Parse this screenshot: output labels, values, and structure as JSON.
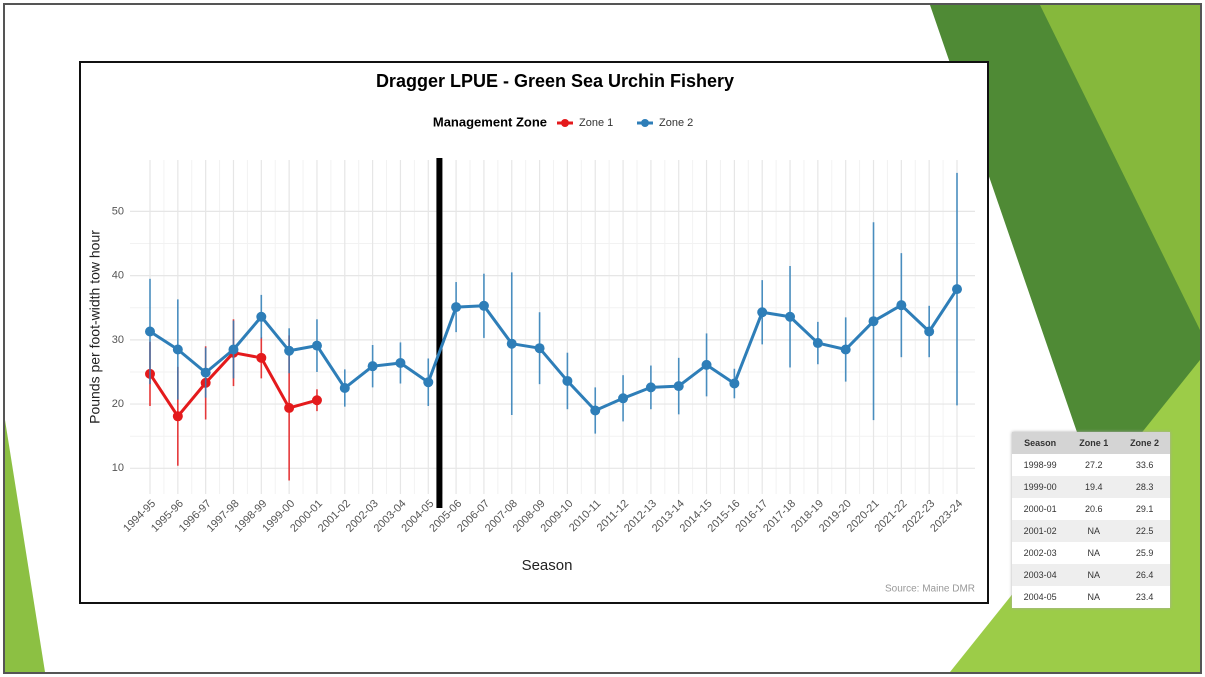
{
  "chart_data": {
    "type": "line",
    "title": "Dragger LPUE - Green Sea Urchin Fishery",
    "x_label": "Season",
    "y_label": "Pounds per foot-width tow hour",
    "source": "Source: Maine DMR",
    "legend_title": "Management Zone",
    "legend_position": "top",
    "grid": true,
    "categories": [
      "1994-95",
      "1995-96",
      "1996-97",
      "1997-98",
      "1998-99",
      "1999-00",
      "2000-01",
      "2001-02",
      "2002-03",
      "2003-04",
      "2004-05",
      "2005-06",
      "2006-07",
      "2007-08",
      "2008-09",
      "2009-10",
      "2010-11",
      "2011-12",
      "2012-13",
      "2013-14",
      "2014-15",
      "2015-16",
      "2016-17",
      "2017-18",
      "2018-19",
      "2019-20",
      "2020-21",
      "2021-22",
      "2022-23",
      "2023-24"
    ],
    "series": [
      {
        "name": "Zone 1",
        "color": "#e41a1c",
        "values": [
          24.7,
          18.1,
          23.3,
          28.0,
          27.2,
          19.4,
          20.6,
          null,
          null,
          null,
          null,
          null,
          null,
          null,
          null,
          null,
          null,
          null,
          null,
          null,
          null,
          null,
          null,
          null,
          null,
          null,
          null,
          null,
          null,
          null
        ],
        "errors": [
          5.0,
          7.7,
          5.7,
          5.2,
          3.2,
          11.3,
          1.7,
          null,
          null,
          null,
          null,
          null,
          null,
          null,
          null,
          null,
          null,
          null,
          null,
          null,
          null,
          null,
          null,
          null,
          null,
          null,
          null,
          null,
          null,
          null
        ]
      },
      {
        "name": "Zone 2",
        "color": "#2e7eb8",
        "values": [
          31.3,
          28.5,
          24.9,
          28.5,
          33.6,
          28.3,
          29.1,
          22.5,
          25.9,
          26.4,
          23.4,
          35.1,
          35.3,
          29.4,
          28.7,
          23.6,
          19.0,
          20.9,
          22.6,
          22.8,
          26.1,
          23.2,
          34.3,
          33.6,
          29.5,
          28.5,
          32.9,
          35.4,
          31.3,
          37.9
        ],
        "errors": [
          8.2,
          7.8,
          3.9,
          4.5,
          3.4,
          3.5,
          4.1,
          2.9,
          3.3,
          3.2,
          3.7,
          3.9,
          5.0,
          11.1,
          5.6,
          4.4,
          3.6,
          3.6,
          3.4,
          4.4,
          4.9,
          2.3,
          5.0,
          7.9,
          3.3,
          5.0,
          15.4,
          8.1,
          4.0,
          18.1
        ]
      }
    ],
    "ylim": [
      6,
      58
    ],
    "yticks": [
      10,
      20,
      30,
      40,
      50
    ]
  },
  "table": {
    "columns": [
      "Season",
      "Zone 1",
      "Zone 2"
    ],
    "rows": [
      [
        "1998-99",
        27.2,
        33.6
      ],
      [
        "1999-00",
        19.4,
        28.3
      ],
      [
        "2000-01",
        20.6,
        29.1
      ],
      [
        "2001-02",
        "NA",
        22.5
      ],
      [
        "2002-03",
        "NA",
        25.9
      ],
      [
        "2003-04",
        "NA",
        26.4
      ],
      [
        "2004-05",
        "NA",
        23.4
      ]
    ]
  }
}
